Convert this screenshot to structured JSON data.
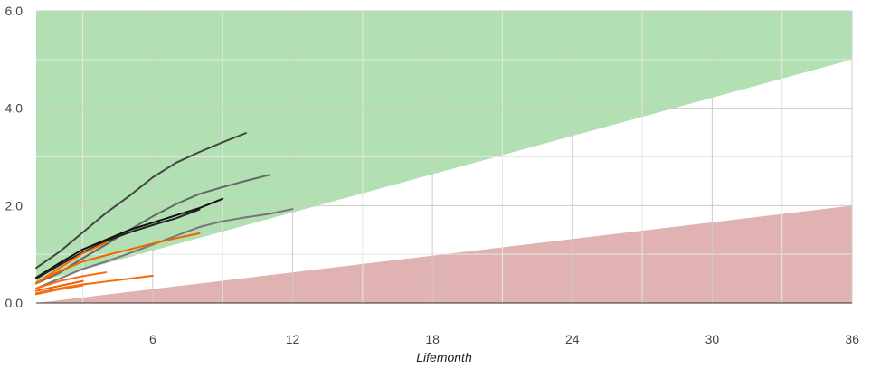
{
  "chart_data": {
    "type": "line",
    "xlabel": "Lifemonth",
    "ylabel": "",
    "xlim": [
      1,
      36
    ],
    "ylim": [
      0,
      6
    ],
    "grid": true,
    "x_ticks": [
      6,
      12,
      18,
      24,
      30,
      36
    ],
    "y_ticks": [
      0,
      2,
      4,
      6
    ],
    "x_tick_labels": [
      "6",
      "12",
      "18",
      "24",
      "30",
      "36"
    ],
    "y_tick_labels": [
      "0.0",
      "2.0",
      "4.0",
      "6.0"
    ],
    "bands": [
      {
        "fill": "#b2e0b2",
        "x": [
          1,
          36
        ],
        "lower": [
          0.42,
          5.0
        ],
        "upper": [
          6,
          6
        ]
      },
      {
        "fill": "#e0b2b2",
        "x": [
          1,
          36
        ],
        "lower": [
          0,
          0
        ],
        "upper": [
          0.0,
          2.0
        ]
      }
    ],
    "series": [
      {
        "color": "#444444",
        "x": [
          1,
          2,
          3,
          4,
          5,
          6,
          7,
          8,
          9,
          10
        ],
        "values": [
          0.72,
          1.05,
          1.45,
          1.85,
          2.2,
          2.58,
          2.88,
          3.1,
          3.3,
          3.49
        ]
      },
      {
        "color": "#666666",
        "x": [
          1,
          2,
          3,
          4,
          5,
          6,
          7,
          8,
          9,
          10,
          11
        ],
        "values": [
          0.4,
          0.62,
          0.92,
          1.2,
          1.5,
          1.78,
          2.03,
          2.24,
          2.38,
          2.51,
          2.63
        ]
      },
      {
        "color": "#111111",
        "x": [
          1,
          2,
          3,
          4,
          5,
          6,
          7,
          8,
          9
        ],
        "values": [
          0.52,
          0.82,
          1.1,
          1.3,
          1.5,
          1.65,
          1.8,
          1.95,
          2.14
        ]
      },
      {
        "color": "#222222",
        "x": [
          1,
          2,
          3,
          4,
          5,
          6,
          7,
          8
        ],
        "values": [
          0.5,
          0.78,
          1.04,
          1.27,
          1.45,
          1.6,
          1.74,
          1.92
        ]
      },
      {
        "color": "#777777",
        "x": [
          1,
          2,
          3,
          4,
          5,
          6,
          7,
          8,
          9,
          10,
          11,
          12
        ],
        "values": [
          0.3,
          0.5,
          0.7,
          0.85,
          1.02,
          1.2,
          1.38,
          1.56,
          1.68,
          1.76,
          1.83,
          1.93
        ]
      },
      {
        "color": "#ee6600",
        "x": [
          1,
          2,
          3,
          4,
          5,
          6,
          7,
          8
        ],
        "values": [
          0.42,
          0.65,
          0.85,
          0.98,
          1.1,
          1.22,
          1.33,
          1.43
        ]
      },
      {
        "color": "#ff6600",
        "x": [
          1,
          2,
          3,
          4
        ],
        "values": [
          0.4,
          0.72,
          1.02,
          1.24
        ]
      },
      {
        "color": "#ff6a10",
        "x": [
          1,
          2,
          3,
          4
        ],
        "values": [
          0.3,
          0.45,
          0.55,
          0.63
        ]
      },
      {
        "color": "#ee6000",
        "x": [
          1,
          2,
          3
        ],
        "values": [
          0.25,
          0.35,
          0.45
        ]
      },
      {
        "color": "#ff6600",
        "x": [
          1,
          2,
          3,
          4,
          5,
          6
        ],
        "values": [
          0.2,
          0.3,
          0.38,
          0.44,
          0.5,
          0.56
        ]
      },
      {
        "color": "#f07020",
        "x": [
          1,
          2,
          3
        ],
        "values": [
          0.18,
          0.28,
          0.36
        ]
      }
    ]
  }
}
